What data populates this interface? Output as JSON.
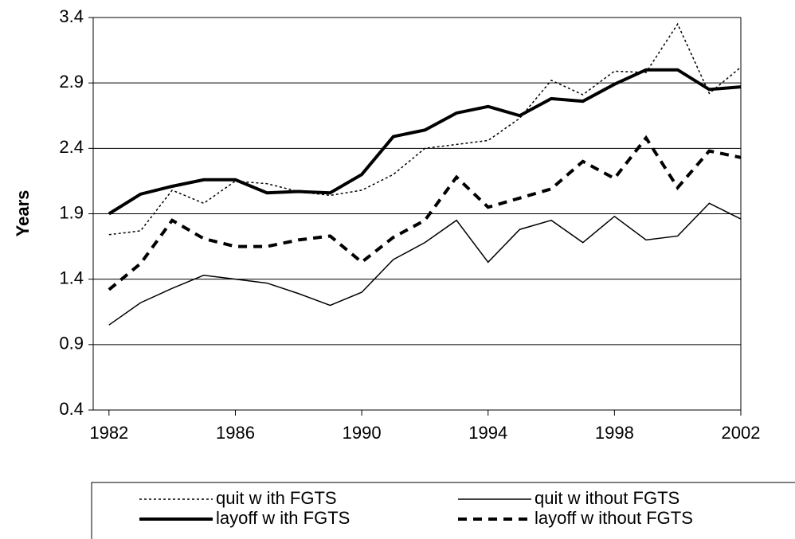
{
  "chart_data": {
    "type": "line",
    "y_label": "Years",
    "x": [
      1982,
      1983,
      1984,
      1985,
      1986,
      1987,
      1988,
      1989,
      1990,
      1991,
      1992,
      1993,
      1994,
      1995,
      1996,
      1997,
      1998,
      1999,
      2000,
      2001,
      2002
    ],
    "xlim": [
      1981.5,
      2002
    ],
    "xticks": [
      1982,
      1986,
      1990,
      1994,
      1998,
      2002
    ],
    "ylim": [
      0.4,
      3.4
    ],
    "yticks": [
      0.4,
      0.9,
      1.4,
      1.9,
      2.4,
      2.9,
      3.4
    ],
    "grid": true,
    "series": [
      {
        "name": "quit w ith FGTS",
        "color": "#000000",
        "dash": "dotted",
        "width": "thin",
        "values": [
          1.74,
          1.77,
          2.08,
          1.98,
          2.15,
          2.13,
          2.07,
          2.04,
          2.08,
          2.2,
          2.4,
          2.43,
          2.46,
          2.63,
          2.92,
          2.81,
          2.99,
          2.98,
          3.35,
          2.82,
          3.02
        ]
      },
      {
        "name": "quit w ithout FGTS",
        "color": "#000000",
        "dash": "solid",
        "width": "thin",
        "values": [
          1.05,
          1.22,
          1.33,
          1.43,
          1.4,
          1.37,
          1.29,
          1.2,
          1.3,
          1.55,
          1.68,
          1.85,
          1.53,
          1.78,
          1.85,
          1.68,
          1.88,
          1.7,
          1.73,
          1.98,
          1.86
        ]
      },
      {
        "name": "layoff w ith FGTS",
        "color": "#000000",
        "dash": "solid",
        "width": "thick",
        "values": [
          1.9,
          2.05,
          2.11,
          2.16,
          2.16,
          2.06,
          2.07,
          2.06,
          2.2,
          2.49,
          2.54,
          2.67,
          2.72,
          2.65,
          2.78,
          2.76,
          2.89,
          3.0,
          3.0,
          2.85,
          2.87
        ]
      },
      {
        "name": "layoff w ithout FGTS",
        "color": "#000000",
        "dash": "dashed",
        "width": "thick",
        "values": [
          1.32,
          1.52,
          1.85,
          1.71,
          1.65,
          1.65,
          1.7,
          1.73,
          1.53,
          1.72,
          1.85,
          2.18,
          1.95,
          2.02,
          2.09,
          2.3,
          2.17,
          2.48,
          2.1,
          2.38,
          2.33
        ]
      }
    ]
  }
}
